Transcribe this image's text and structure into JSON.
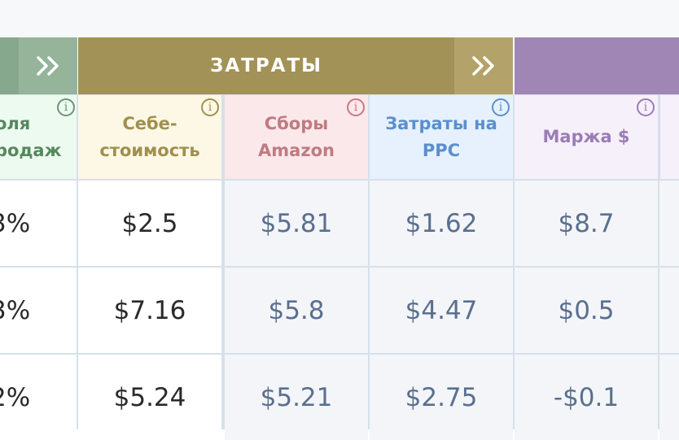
{
  "groups": {
    "costs_title": "ЗАТРАТЫ"
  },
  "columns": {
    "sales_share": "оля\nродаж",
    "cost_price": "Себе-\nстоимость",
    "amazon_fees": "Сборы\nAmazon",
    "ppc_costs": "Затраты на\nPPC",
    "margin": "Маржа $"
  },
  "info_glyph": "i",
  "rows": [
    {
      "sales_share": "3%",
      "cost_price": "$2.5",
      "amazon_fees": "$5.81",
      "ppc_costs": "$1.62",
      "margin": "$8.7"
    },
    {
      "sales_share": "3%",
      "cost_price": "$7.16",
      "amazon_fees": "$5.8",
      "ppc_costs": "$4.47",
      "margin": "$0.5"
    },
    {
      "sales_share": "2%",
      "cost_price": "$5.24",
      "amazon_fees": "$5.21",
      "ppc_costs": "$2.75",
      "margin": "-$0.1"
    }
  ],
  "colors": {
    "costs_group": "#a39257",
    "sales_group": "#86a88c",
    "margin_group": "#9f86b5"
  }
}
